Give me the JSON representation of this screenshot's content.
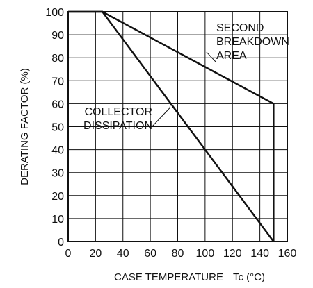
{
  "chart_data": {
    "type": "line",
    "xlabel": "CASE TEMPERATURE",
    "xlabel_symbol": "Tc (°C)",
    "ylabel": "DERATING FACTOR (%)",
    "xlim": [
      0,
      160
    ],
    "ylim": [
      0,
      100
    ],
    "x_ticks": [
      0,
      20,
      40,
      60,
      80,
      100,
      120,
      140,
      160
    ],
    "y_ticks": [
      0,
      10,
      20,
      30,
      40,
      50,
      60,
      70,
      80,
      90,
      100
    ],
    "grid": true,
    "series": [
      {
        "id": "collector",
        "x": [
          0,
          25,
          150
        ],
        "y": [
          100,
          100,
          0
        ]
      },
      {
        "id": "breakdown",
        "x": [
          0,
          25,
          150,
          150
        ],
        "y": [
          100,
          100,
          60,
          0
        ]
      }
    ],
    "annotations": [
      {
        "id": "second_breakdown",
        "lines": [
          "SECOND",
          "BREAKDOWN",
          "AREA"
        ]
      },
      {
        "id": "collector_dissipation",
        "lines": [
          "COLLECTOR",
          "DISSIPATION"
        ]
      }
    ]
  }
}
